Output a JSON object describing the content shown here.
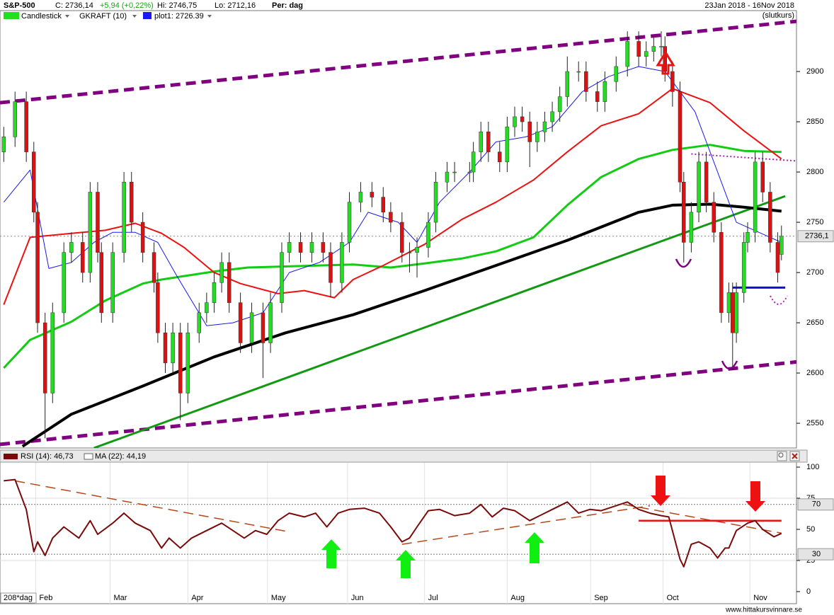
{
  "chart_data": [
    {
      "type": "candlestick",
      "title": "S&P-500",
      "info": [
        "C: 2736,14",
        "+5,94 (+0,22%)",
        "Hi: 2746,75",
        "Lo: 2712,16",
        "Per: dag"
      ],
      "date_range": "23Jan 2018 - 16Nov 2018",
      "price_type": "(slutkurs)",
      "indicator_label": "GKRAFT (10)",
      "xlim": [
        -1,
        211
      ],
      "ylim": [
        2525.4,
        2960.6
      ],
      "yticks": [
        2550,
        2600,
        2650,
        2700,
        2750,
        2800,
        2850,
        2900
      ],
      "last_price": {
        "value": 2736.14,
        "label": "2736,1"
      },
      "candles": {
        "name": "Candlestick",
        "up_color": "#22dd22",
        "down_color": "#dd1111",
        "x": [
          0,
          3,
          6,
          8,
          9,
          11,
          13,
          16,
          18,
          21,
          23,
          25,
          26,
          29,
          32,
          34,
          37,
          40,
          41,
          43,
          45,
          47,
          49,
          52,
          54,
          56,
          58,
          60,
          63,
          66,
          69,
          71,
          74,
          76,
          79,
          82,
          85,
          87,
          90,
          92,
          95,
          98,
          101,
          103,
          106,
          108,
          110,
          113,
          115,
          118,
          120,
          124,
          125,
          127,
          129,
          132,
          134,
          136,
          138,
          140,
          142,
          144,
          146,
          148,
          150,
          153,
          155,
          158,
          160,
          163,
          166,
          169,
          171,
          173,
          175,
          176,
          178,
          180,
          181,
          183,
          185,
          187,
          189,
          191,
          193,
          194,
          195,
          197,
          198,
          200,
          202,
          204,
          206,
          207
        ],
        "open": [
          2820,
          2835,
          2870,
          2820,
          2760,
          2650,
          2580,
          2660,
          2720,
          2730,
          2700,
          2780,
          2720,
          2660,
          2720,
          2790,
          2750,
          2720,
          2690,
          2640,
          2610,
          2640,
          2580,
          2640,
          2660,
          2670,
          2690,
          2710,
          2670,
          2630,
          2660,
          2630,
          2670,
          2720,
          2730,
          2720,
          2730,
          2720,
          2690,
          2730,
          2770,
          2780,
          2775,
          2760,
          2750,
          2720,
          2720,
          2725,
          2750,
          2790,
          2800,
          2800,
          2800,
          2820,
          2840,
          2820,
          2810,
          2845,
          2855,
          2850,
          2830,
          2840,
          2850,
          2860,
          2875,
          2900,
          2900,
          2880,
          2870,
          2890,
          2905,
          2930,
          2915,
          2920,
          2925,
          2925,
          2900,
          2880,
          2790,
          2730,
          2760,
          2810,
          2770,
          2740,
          2660,
          2680,
          2640,
          2680,
          2730,
          2740,
          2810,
          2780,
          2730,
          2718
        ],
        "high": [
          2845,
          2880,
          2880,
          2830,
          2770,
          2660,
          2670,
          2730,
          2740,
          2740,
          2790,
          2790,
          2730,
          2730,
          2800,
          2800,
          2760,
          2730,
          2700,
          2650,
          2650,
          2650,
          2650,
          2670,
          2680,
          2700,
          2720,
          2720,
          2680,
          2670,
          2670,
          2680,
          2730,
          2740,
          2740,
          2740,
          2740,
          2730,
          2740,
          2780,
          2790,
          2790,
          2785,
          2770,
          2760,
          2730,
          2735,
          2760,
          2800,
          2810,
          2810,
          2810,
          2830,
          2850,
          2850,
          2830,
          2855,
          2865,
          2865,
          2860,
          2850,
          2860,
          2870,
          2885,
          2915,
          2910,
          2910,
          2890,
          2900,
          2915,
          2940,
          2940,
          2930,
          2935,
          2940,
          2935,
          2910,
          2890,
          2800,
          2770,
          2820,
          2820,
          2780,
          2750,
          2690,
          2690,
          2690,
          2740,
          2750,
          2820,
          2820,
          2790,
          2740,
          2746.75
        ],
        "low": [
          2810,
          2825,
          2810,
          2750,
          2640,
          2535,
          2570,
          2650,
          2710,
          2690,
          2690,
          2710,
          2650,
          2650,
          2710,
          2740,
          2710,
          2680,
          2630,
          2600,
          2600,
          2553,
          2570,
          2630,
          2650,
          2660,
          2680,
          2660,
          2620,
          2620,
          2595,
          2620,
          2660,
          2710,
          2710,
          2710,
          2710,
          2675,
          2680,
          2720,
          2760,
          2765,
          2750,
          2740,
          2710,
          2700,
          2695,
          2715,
          2740,
          2780,
          2790,
          2790,
          2790,
          2810,
          2810,
          2800,
          2800,
          2835,
          2840,
          2805,
          2820,
          2830,
          2840,
          2850,
          2865,
          2890,
          2870,
          2860,
          2860,
          2880,
          2895,
          2905,
          2905,
          2910,
          2915,
          2890,
          2865,
          2780,
          2710,
          2720,
          2750,
          2760,
          2730,
          2650,
          2650,
          2603,
          2630,
          2670,
          2720,
          2730,
          2770,
          2720,
          2690,
          2712.16
        ],
        "close": [
          2835,
          2870,
          2820,
          2760,
          2650,
          2580,
          2660,
          2720,
          2730,
          2700,
          2780,
          2720,
          2660,
          2720,
          2790,
          2750,
          2720,
          2690,
          2640,
          2610,
          2640,
          2580,
          2640,
          2660,
          2670,
          2690,
          2710,
          2670,
          2630,
          2660,
          2630,
          2670,
          2720,
          2730,
          2720,
          2730,
          2720,
          2690,
          2730,
          2770,
          2780,
          2775,
          2760,
          2750,
          2720,
          2720,
          2725,
          2750,
          2790,
          2800,
          2800,
          2800,
          2820,
          2840,
          2820,
          2810,
          2845,
          2855,
          2850,
          2830,
          2840,
          2850,
          2860,
          2875,
          2900,
          2900,
          2880,
          2870,
          2890,
          2905,
          2930,
          2915,
          2920,
          2925,
          2925,
          2900,
          2880,
          2790,
          2730,
          2760,
          2810,
          2770,
          2740,
          2660,
          2680,
          2640,
          2680,
          2730,
          2740,
          2810,
          2780,
          2730,
          2700,
          2736.14
        ]
      },
      "lines": [
        {
          "name": "plot1: 2726.39",
          "color": "#1a1aee",
          "width": 1,
          "x": [
            0,
            7,
            12,
            18,
            24,
            29,
            35,
            41,
            46,
            54,
            61,
            69,
            76,
            84,
            92,
            97,
            105,
            110,
            116,
            124,
            131,
            139,
            146,
            154,
            161,
            169,
            176,
            184,
            190,
            195,
            201,
            207
          ],
          "values": [
            2770,
            2802,
            2704,
            2710,
            2730,
            2740,
            2740,
            2730,
            2697,
            2647,
            2650,
            2660,
            2700,
            2710,
            2730,
            2760,
            2750,
            2730,
            2770,
            2800,
            2830,
            2835,
            2845,
            2880,
            2895,
            2905,
            2900,
            2860,
            2800,
            2750,
            2740,
            2730
          ]
        },
        {
          "color": "#ee1111",
          "width": 2,
          "x": [
            0,
            7,
            18,
            27,
            35,
            42,
            48,
            56,
            63,
            73,
            80,
            88,
            93,
            101,
            112,
            122,
            131,
            141,
            150,
            159,
            169,
            178,
            188,
            197,
            207
          ],
          "values": [
            2668,
            2735,
            2739,
            2742,
            2749,
            2739,
            2725,
            2700,
            2689,
            2679,
            2682,
            2675,
            2693,
            2707,
            2728,
            2753,
            2770,
            2792,
            2820,
            2846,
            2858,
            2883,
            2869,
            2841,
            2813
          ]
        },
        {
          "color": "#11cc11",
          "width": 3,
          "x": [
            0,
            7,
            18,
            27,
            37,
            42,
            56,
            65,
            84,
            93,
            103,
            112,
            122,
            131,
            141,
            150,
            159,
            169,
            178,
            188,
            197,
            207
          ],
          "values": [
            2605,
            2633,
            2651,
            2672,
            2689,
            2693,
            2701,
            2705,
            2707,
            2708,
            2705,
            2709,
            2714,
            2721,
            2735,
            2767,
            2795,
            2813,
            2822,
            2827,
            2821,
            2820
          ]
        },
        {
          "color": "#000000",
          "width": 4,
          "x": [
            5,
            18,
            37,
            56,
            75,
            93,
            112,
            131,
            150,
            169,
            178,
            188,
            197,
            207
          ],
          "values": [
            2527,
            2559,
            2587,
            2616,
            2640,
            2658,
            2682,
            2707,
            2732,
            2760,
            2767,
            2768,
            2765,
            2761
          ]
        }
      ],
      "trend_lines": [
        {
          "color": "#800080",
          "style": "dashed",
          "width": 5,
          "x": [
            -1,
            211
          ],
          "values": [
            2869,
            2950
          ]
        },
        {
          "color": "#800080",
          "style": "dashed",
          "width": 5,
          "x": [
            -1,
            211
          ],
          "values": [
            2529,
            2611
          ]
        },
        {
          "color": "#119911",
          "style": "solid",
          "width": 3,
          "x": [
            24,
            208
          ],
          "values": [
            2525.4,
            2776
          ]
        },
        {
          "color": "#1010cc",
          "style": "solid",
          "width": 3,
          "x": [
            194,
            208
          ],
          "values": [
            2685,
            2685
          ]
        },
        {
          "color": "#aa22aa",
          "style": "dotted",
          "width": 2,
          "x": [
            183,
            211
          ],
          "values": [
            2818,
            2811
          ]
        }
      ]
    },
    {
      "type": "line",
      "title": "RSI (14): 46,73",
      "ma_label": "MA (22): 44,19",
      "color": "#7a0a0a",
      "period_label": "208*dag",
      "watermark": "www.hittakursvinnare.se",
      "xlim": [
        -1,
        211
      ],
      "xticks": [
        {
          "value": 8.5,
          "label": "Feb"
        },
        {
          "value": 28.3,
          "label": "Mar"
        },
        {
          "value": 49,
          "label": "Apr"
        },
        {
          "value": 70.2,
          "label": "May"
        },
        {
          "value": 91.5,
          "label": "Jun"
        },
        {
          "value": 112,
          "label": "Jul"
        },
        {
          "value": 134,
          "label": "Aug"
        },
        {
          "value": 156.2,
          "label": "Sep"
        },
        {
          "value": 175.5,
          "label": "Oct"
        },
        {
          "value": 198.6,
          "label": "Nov"
        }
      ],
      "ylim": [
        -9.7,
        104
      ],
      "yticks": [
        0,
        25,
        50,
        75,
        100
      ],
      "levels": [
        70,
        30
      ],
      "x": [
        0,
        3,
        6,
        8,
        9,
        11,
        13,
        16,
        20,
        23,
        25,
        29,
        32,
        35,
        39,
        42,
        44,
        47,
        50,
        54,
        58,
        61,
        64,
        67,
        70,
        73,
        76,
        80,
        83,
        86,
        89,
        92,
        96,
        100,
        103,
        106,
        108,
        110,
        113,
        116,
        120,
        124,
        127,
        130,
        133,
        136,
        140,
        142,
        146,
        150,
        153,
        156,
        159,
        163,
        166,
        169,
        172,
        175,
        177,
        180,
        181,
        183,
        185,
        188,
        190,
        192,
        193,
        195,
        198,
        200,
        202,
        205,
        207
      ],
      "values": [
        89,
        90,
        66,
        32,
        40,
        29,
        43,
        52,
        43,
        57,
        46,
        55,
        63,
        55,
        49,
        35,
        43,
        35,
        43,
        49,
        55,
        49,
        43,
        49,
        46,
        57,
        63,
        60,
        63,
        52,
        63,
        66,
        67,
        63,
        52,
        40,
        43,
        52,
        65,
        66,
        61,
        63,
        70,
        60,
        67,
        65,
        57,
        60,
        66,
        72,
        63,
        66,
        65,
        69,
        72,
        66,
        63,
        61,
        60,
        26,
        20,
        38,
        40,
        35,
        27,
        35,
        35,
        49,
        55,
        57,
        50,
        44,
        46.73
      ],
      "trend_lines": [
        {
          "color": "#b5471b",
          "style": "dashed",
          "width": 1.5,
          "x": [
            3,
            76
          ],
          "values": [
            89,
            48
          ]
        },
        {
          "color": "#b5471b",
          "style": "dashed",
          "width": 1.5,
          "x": [
            106,
            172
          ],
          "values": [
            38,
            69
          ]
        },
        {
          "color": "#b5471b",
          "style": "dashed",
          "width": 1.5,
          "x": [
            165,
            207
          ],
          "values": [
            70,
            47
          ]
        },
        {
          "color": "#ee1111",
          "style": "solid",
          "width": 2.5,
          "x": [
            169,
            207
          ],
          "values": [
            57,
            57
          ]
        }
      ]
    }
  ]
}
